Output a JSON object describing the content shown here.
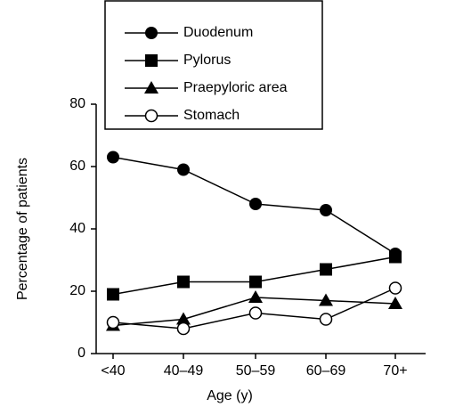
{
  "chart_data": {
    "type": "line",
    "x_label": "Age (y)",
    "y_label": "Percentage of patients",
    "categories": [
      "<40",
      "40–49",
      "50–59",
      "60–69",
      "70+"
    ],
    "series": [
      {
        "name": "Duodenum",
        "color": "#000000",
        "marker": "circle",
        "values": [
          63,
          59,
          48,
          46,
          32
        ]
      },
      {
        "name": "Pylorus",
        "color": "#000000",
        "marker": "square",
        "values": [
          19,
          23,
          23,
          27,
          31
        ]
      },
      {
        "name": "Praepyloric area",
        "color": "#000000",
        "marker": "triangle",
        "values": [
          9,
          11,
          18,
          17,
          16
        ]
      },
      {
        "name": "Stomach",
        "color": "#000000",
        "marker": "open-circle",
        "values": [
          10,
          8,
          13,
          11,
          21
        ]
      }
    ],
    "ylim": [
      0,
      80
    ],
    "yticks": [
      0,
      20,
      40,
      60,
      80
    ],
    "legend": "top-left"
  }
}
